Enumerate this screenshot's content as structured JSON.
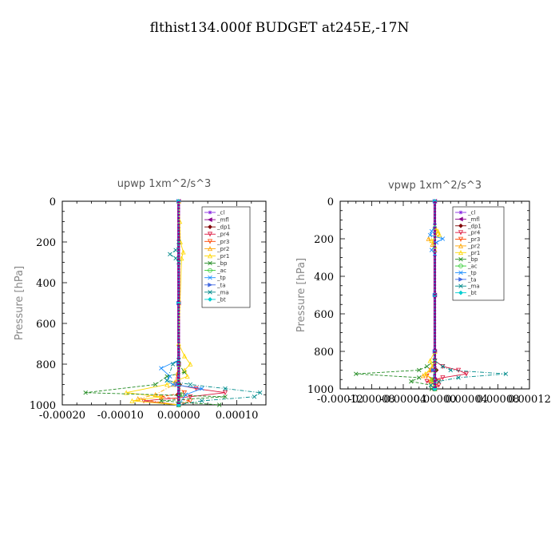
{
  "figure_title": "flthist134.000f  BUDGET at245E,-17N",
  "chart_data": [
    {
      "type": "line",
      "title": "upwp   1xm^2/s^3",
      "ylabel": "Pressure [hPa]",
      "xlim": [
        -0.0002,
        0.00015
      ],
      "ylim": [
        1000,
        0
      ],
      "xticks": [
        -0.0002,
        -0.0001,
        0.0,
        0.0001
      ],
      "xtick_labels": [
        "-0.00020",
        "-0.00010",
        "0.00000",
        "0.00010"
      ],
      "yticks": [
        0,
        200,
        400,
        600,
        800,
        1000
      ],
      "ytick_labels": [
        "0",
        "200",
        "400",
        "600",
        "800",
        "1000"
      ],
      "legend_position": "top-right",
      "series": [
        {
          "name": "_cl",
          "color": "#8a2be2",
          "y": [
            0,
            500,
            800,
            900,
            950,
            1000
          ],
          "x": [
            0,
            0,
            0,
            0,
            0,
            0
          ]
        },
        {
          "name": "_mfl",
          "color": "#8b008b",
          "y": [
            0,
            500,
            800,
            900,
            950,
            1000
          ],
          "x": [
            0,
            0,
            0,
            0,
            0,
            0
          ]
        },
        {
          "name": "_dp1",
          "color": "#800000",
          "y": [
            0,
            500,
            800,
            900,
            950,
            1000
          ],
          "x": [
            0,
            0,
            0,
            2e-06,
            -2e-06,
            0
          ]
        },
        {
          "name": "_pr4",
          "color": "#dc143c",
          "y": [
            800,
            900,
            920,
            940,
            960,
            980,
            1000
          ],
          "x": [
            0,
            -5e-06,
            3e-05,
            8e-05,
            2e-05,
            -6e-05,
            0
          ]
        },
        {
          "name": "_pr3",
          "color": "#ff4500",
          "y": [
            800,
            900,
            940,
            960,
            980,
            1000
          ],
          "x": [
            0,
            -5e-06,
            1e-05,
            -3e-05,
            2e-05,
            0
          ]
        },
        {
          "name": "_pr2",
          "color": "#ffa500",
          "y": [
            800,
            900,
            950,
            970,
            1000
          ],
          "x": [
            0,
            -8e-06,
            -4e-05,
            -7e-05,
            0
          ]
        },
        {
          "name": "_pr1",
          "color": "#ffd700",
          "y": [
            0,
            100,
            200,
            250,
            280,
            700,
            760,
            800,
            830,
            860,
            900,
            940,
            960,
            980,
            1000
          ],
          "x": [
            0,
            2e-06,
            3e-06,
            8e-06,
            5e-06,
            0,
            1e-05,
            2e-05,
            1e-05,
            1.5e-05,
            -2e-05,
            -9e-05,
            -3e-05,
            -8e-05,
            0
          ]
        },
        {
          "name": "_bp",
          "color": "#228b22",
          "y": [
            800,
            840,
            860,
            900,
            940,
            960,
            980,
            1000
          ],
          "x": [
            0,
            1e-05,
            -2e-05,
            -4e-05,
            -0.00016,
            8e-05,
            -3e-05,
            7e-05
          ]
        },
        {
          "name": "_ac",
          "color": "#32cd32",
          "y": [
            900,
            950,
            1000
          ],
          "x": [
            0,
            5e-06,
            0
          ]
        },
        {
          "name": "_tp",
          "color": "#1e90ff",
          "y": [
            780,
            820,
            860,
            880,
            900,
            920,
            950,
            1000
          ],
          "x": [
            0,
            -3e-05,
            -1.5e-05,
            -2e-05,
            -1e-05,
            4e-05,
            1.2e-05,
            0
          ]
        },
        {
          "name": "_ta",
          "color": "#4169e1",
          "y": [
            0,
            500,
            800,
            900,
            1000
          ],
          "x": [
            0,
            0,
            0,
            -2e-06,
            0
          ]
        },
        {
          "name": "_ma",
          "color": "#008b8b",
          "y": [
            200,
            240,
            260,
            280,
            300,
            780,
            800,
            880,
            900,
            920,
            940,
            960,
            980,
            1000
          ],
          "x": [
            0,
            -5e-06,
            -1.5e-05,
            -5e-06,
            0,
            0,
            -1e-05,
            -2e-05,
            2e-05,
            8e-05,
            0.00014,
            0.00013,
            4e-05,
            0
          ]
        },
        {
          "name": "_bt",
          "color": "#00ced1",
          "y": [
            0,
            500,
            1000
          ],
          "x": [
            0,
            0,
            0
          ]
        }
      ]
    },
    {
      "type": "line",
      "title": "vpwp   1xm^2/s^3",
      "ylabel": "Pressure [hPa]",
      "xlim": [
        -0.00012,
        0.00012
      ],
      "ylim": [
        1000,
        0
      ],
      "xticks": [
        -0.00012,
        -8e-05,
        -4e-05,
        0.0,
        4e-05,
        8e-05,
        0.00012
      ],
      "xtick_labels": [
        "-0.00012",
        "-0.00008",
        "-0.00004",
        "0.00000",
        "0.00004",
        "0.00008",
        "0.00012"
      ],
      "yticks": [
        0,
        200,
        400,
        600,
        800,
        1000
      ],
      "ytick_labels": [
        "0",
        "200",
        "400",
        "600",
        "800",
        "1000"
      ],
      "legend_position": "top-right",
      "series": [
        {
          "name": "_cl",
          "color": "#8a2be2",
          "y": [
            0,
            500,
            800,
            900,
            950,
            1000
          ],
          "x": [
            0,
            0,
            0,
            0,
            0,
            0
          ]
        },
        {
          "name": "_mfl",
          "color": "#8b008b",
          "y": [
            0,
            500,
            800,
            900,
            950,
            1000
          ],
          "x": [
            0,
            0,
            0,
            0,
            0,
            0
          ]
        },
        {
          "name": "_dp1",
          "color": "#800000",
          "y": [
            0,
            500,
            800,
            900,
            950,
            1000
          ],
          "x": [
            0,
            0,
            0,
            2e-06,
            -2e-06,
            0
          ]
        },
        {
          "name": "_pr4",
          "color": "#dc143c",
          "y": [
            850,
            880,
            900,
            920,
            940,
            960,
            980,
            1000
          ],
          "x": [
            0,
            1e-05,
            3e-05,
            4e-05,
            1e-05,
            -1e-05,
            5e-06,
            0
          ]
        },
        {
          "name": "_pr3",
          "color": "#ff4500",
          "y": [
            850,
            900,
            930,
            960,
            1000
          ],
          "x": [
            0,
            -5e-06,
            -1e-05,
            5e-06,
            0
          ]
        },
        {
          "name": "_pr2",
          "color": "#ffa500",
          "y": [
            140,
            170,
            200,
            230,
            260,
            850,
            900,
            930,
            960,
            1000
          ],
          "x": [
            0,
            4e-06,
            -8e-06,
            -3e-06,
            0,
            0,
            -5e-06,
            -1.5e-05,
            -5e-06,
            0
          ]
        },
        {
          "name": "_pr1",
          "color": "#ffd700",
          "y": [
            130,
            160,
            180,
            210,
            240,
            800,
            850,
            880,
            920,
            950,
            1000
          ],
          "x": [
            0,
            4e-06,
            6e-06,
            -4e-06,
            0,
            0,
            -6e-06,
            -3e-06,
            -1.2e-05,
            -4e-06,
            0
          ]
        },
        {
          "name": "_bp",
          "color": "#228b22",
          "y": [
            850,
            880,
            900,
            920,
            940,
            960,
            980,
            1000
          ],
          "x": [
            0,
            -1e-05,
            -2e-05,
            -0.0001,
            -2e-05,
            -3e-05,
            -5e-06,
            -4e-06
          ]
        },
        {
          "name": "_ac",
          "color": "#32cd32",
          "y": [
            900,
            950,
            1000
          ],
          "x": [
            0,
            -3e-06,
            0
          ]
        },
        {
          "name": "_tp",
          "color": "#1e90ff",
          "y": [
            130,
            160,
            180,
            200,
            220,
            260,
            280
          ],
          "x": [
            0,
            -4e-06,
            -6e-06,
            1e-05,
            2e-06,
            -4e-06,
            0
          ]
        },
        {
          "name": "_ta",
          "color": "#4169e1",
          "y": [
            0,
            500,
            800,
            900,
            1000
          ],
          "x": [
            0,
            0,
            0,
            -2e-06,
            0
          ]
        },
        {
          "name": "_ma",
          "color": "#008b8b",
          "y": [
            850,
            880,
            900,
            920,
            940,
            960,
            980,
            1000
          ],
          "x": [
            0,
            1e-05,
            2e-05,
            9e-05,
            3e-05,
            5e-06,
            -5e-06,
            0
          ]
        },
        {
          "name": "_bt",
          "color": "#00ced1",
          "y": [
            0,
            500,
            1000
          ],
          "x": [
            0,
            0,
            0
          ]
        }
      ]
    }
  ]
}
